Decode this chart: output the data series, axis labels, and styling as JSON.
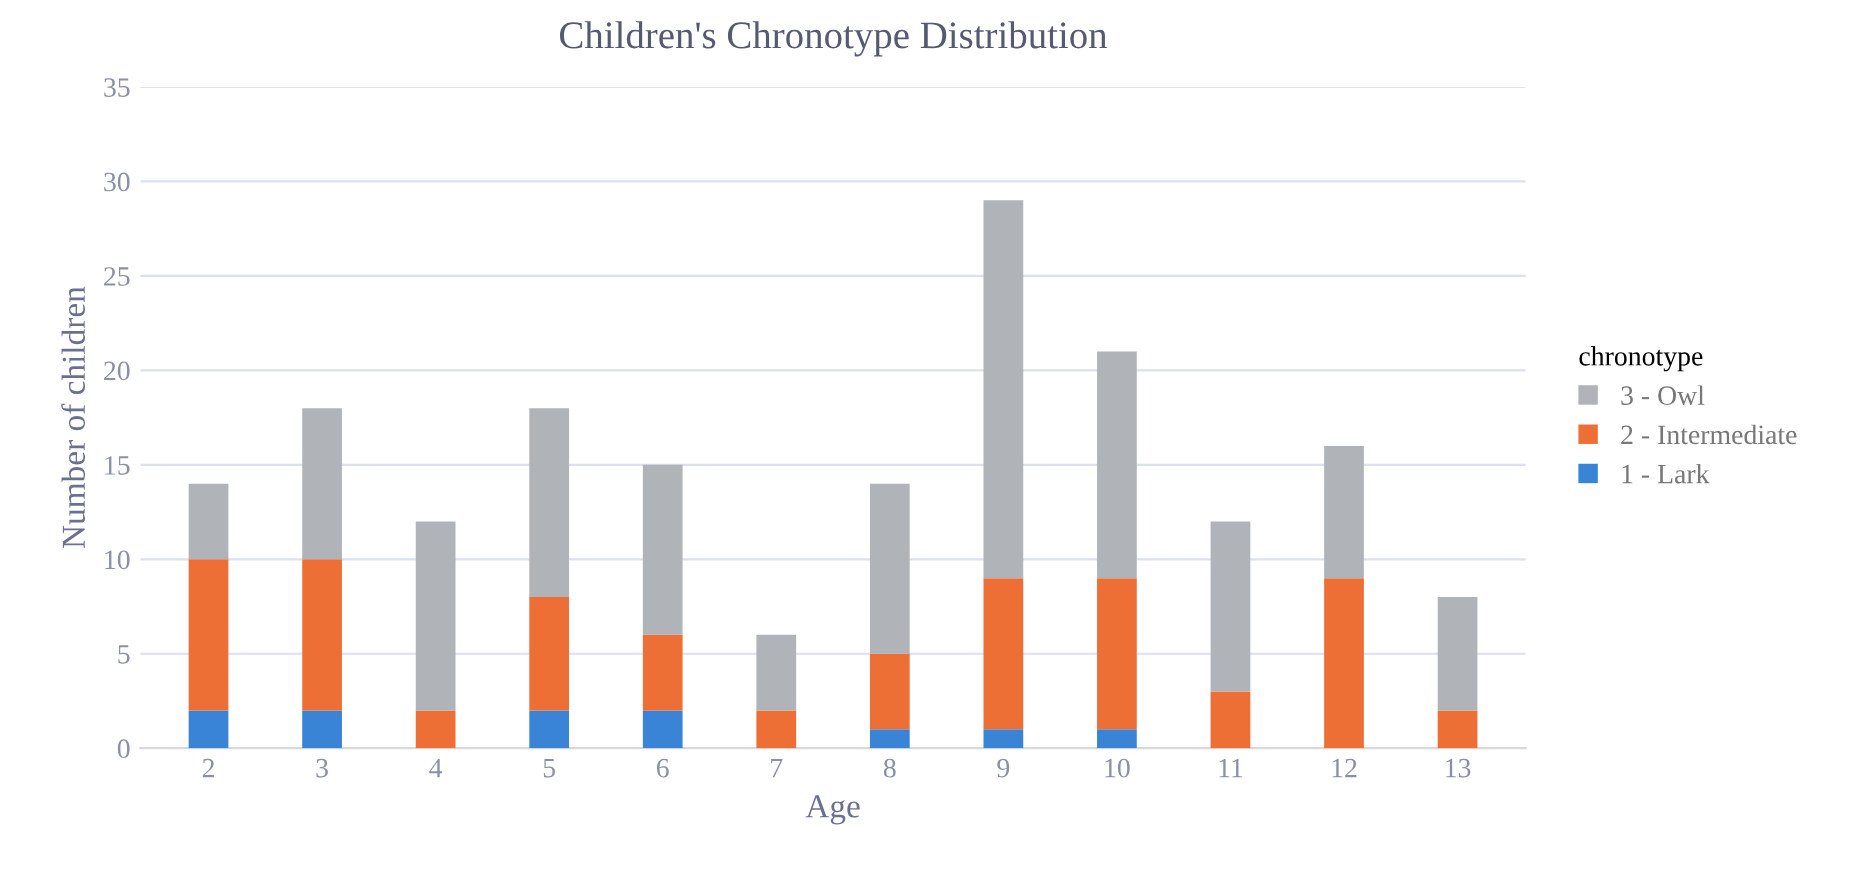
{
  "chart_data": {
    "type": "bar",
    "title": "Children's Chronotype Distribution",
    "xlabel": "Age",
    "ylabel": "Number of children",
    "legend_title": "chronotype",
    "categories": [
      "2",
      "3",
      "4",
      "5",
      "6",
      "7",
      "8",
      "9",
      "10",
      "11",
      "12",
      "13"
    ],
    "stacked": true,
    "series": [
      {
        "name": "1 - Lark",
        "color": "#3a84d8",
        "values": [
          2,
          2,
          0,
          2,
          2,
          0,
          1,
          1,
          1,
          0,
          0,
          0
        ]
      },
      {
        "name": "2 - Intermediate",
        "color": "#ee6f36",
        "values": [
          8,
          8,
          2,
          6,
          4,
          2,
          4,
          8,
          8,
          3,
          9,
          2
        ]
      },
      {
        "name": "3 - Owl",
        "color": "#b0b3b8",
        "values": [
          4,
          8,
          10,
          10,
          9,
          4,
          9,
          20,
          12,
          9,
          7,
          6
        ]
      }
    ],
    "ylim": [
      0,
      35
    ],
    "yticks": [
      0,
      5,
      10,
      15,
      20,
      25,
      30,
      35
    ],
    "grid": "y",
    "legend": "right"
  }
}
